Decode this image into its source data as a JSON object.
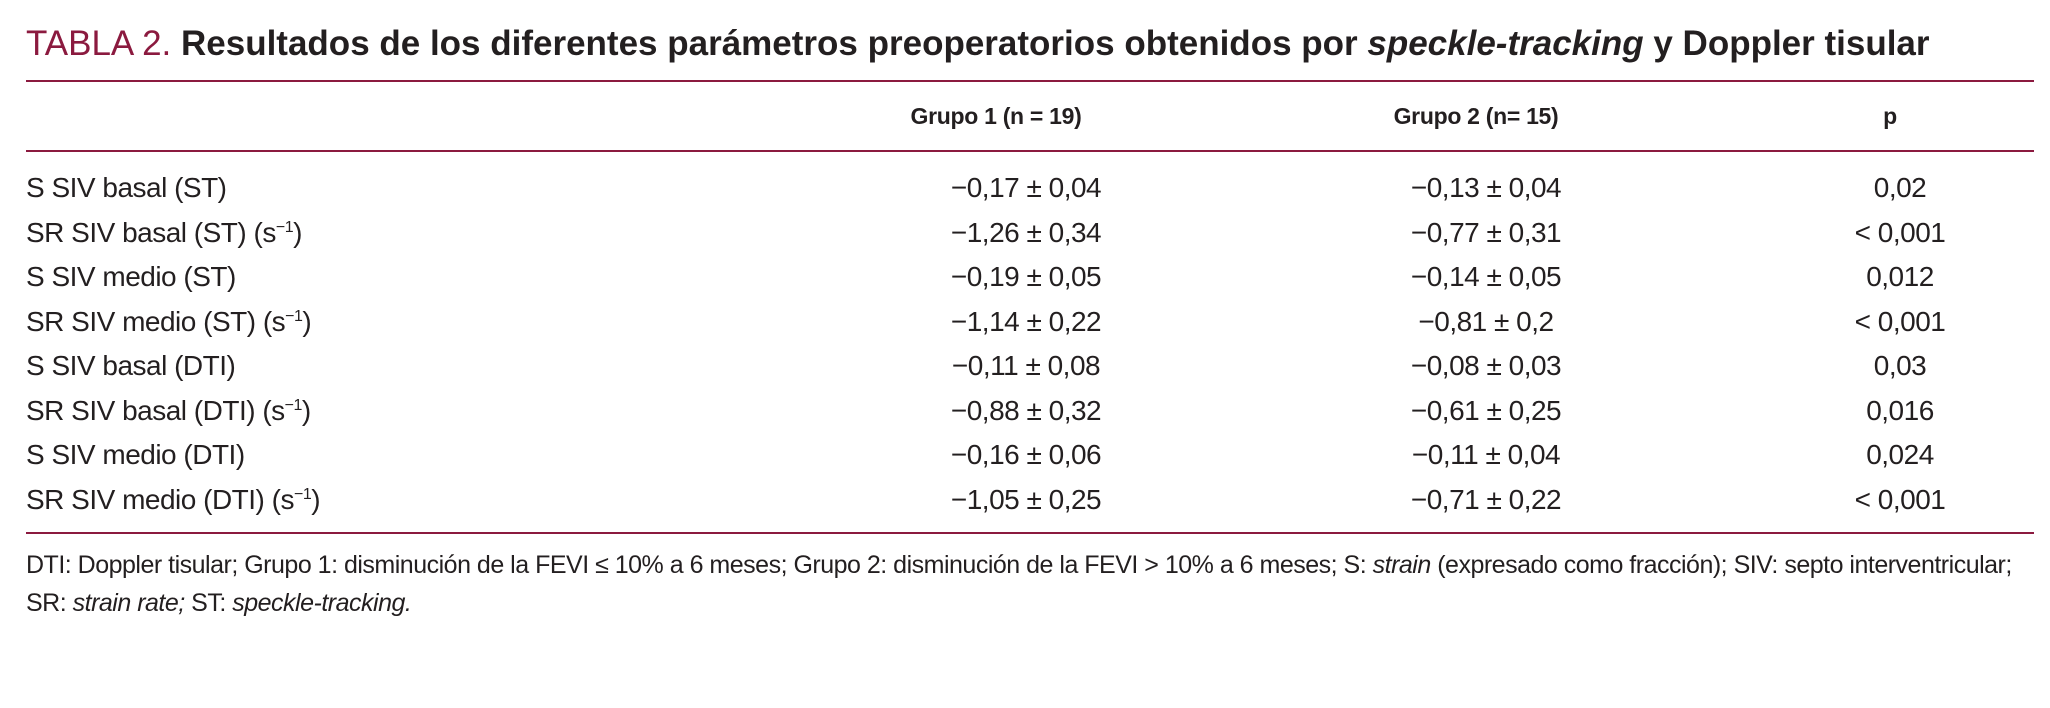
{
  "title": {
    "label": "TABLA 2.",
    "text_before_italic": "Resultados de los diferentes parámetros preoperatorios obtenidos por ",
    "italic": "speckle-tracking",
    "text_after_italic": " y Doppler tisular"
  },
  "table": {
    "headers": [
      "",
      "Grupo 1 (n = 19)",
      "Grupo 2 (n= 15)",
      "p"
    ],
    "rows": [
      {
        "param": "S SIV basal (ST)",
        "unit": "",
        "g1": "−0,17 ± 0,04",
        "g2": "−0,13 ± 0,04",
        "p": "0,02"
      },
      {
        "param": "SR SIV basal (ST) (s",
        "unit": "−1",
        "g1": "−1,26 ± 0,34",
        "g2": "−0,77 ± 0,31",
        "p": "< 0,001"
      },
      {
        "param": "S SIV medio (ST)",
        "unit": "",
        "g1": "−0,19 ± 0,05",
        "g2": "−0,14 ± 0,05",
        "p": "0,012"
      },
      {
        "param": "SR SIV medio (ST) (s",
        "unit": "−1",
        "g1": "−1,14 ± 0,22",
        "g2": "−0,81 ± 0,2",
        "p": "< 0,001"
      },
      {
        "param": "S SIV basal (DTI)",
        "unit": "",
        "g1": "−0,11 ± 0,08",
        "g2": "−0,08 ± 0,03",
        "p": "0,03"
      },
      {
        "param": "SR SIV basal (DTI) (s",
        "unit": "−1",
        "g1": "−0,88 ± 0,32",
        "g2": "−0,61 ± 0,25",
        "p": "0,016"
      },
      {
        "param": "S SIV medio (DTI)",
        "unit": "",
        "g1": "−0,16 ± 0,06",
        "g2": "−0,11 ± 0,04",
        "p": "0,024"
      },
      {
        "param": "SR SIV medio (DTI) (s",
        "unit": "−1",
        "g1": "−1,05 ± 0,25",
        "g2": "−0,71 ± 0,22",
        "p": "< 0,001"
      }
    ],
    "unit_close": ")"
  },
  "footnote": {
    "p1": "DTI: Doppler tisular; Grupo 1: disminución de la FEVI ≤ 10% a 6 meses; Grupo 2: disminución de la FEVI > 10% a 6 meses; S: ",
    "i1": "strain",
    "p2": " (expresado como fracción); SIV: septo interventricular; SR: ",
    "i2": "strain rate;",
    "p3": " ST: ",
    "i3": "speckle-tracking."
  },
  "colors": {
    "accent": "#8b1a3f",
    "text": "#231f20"
  }
}
